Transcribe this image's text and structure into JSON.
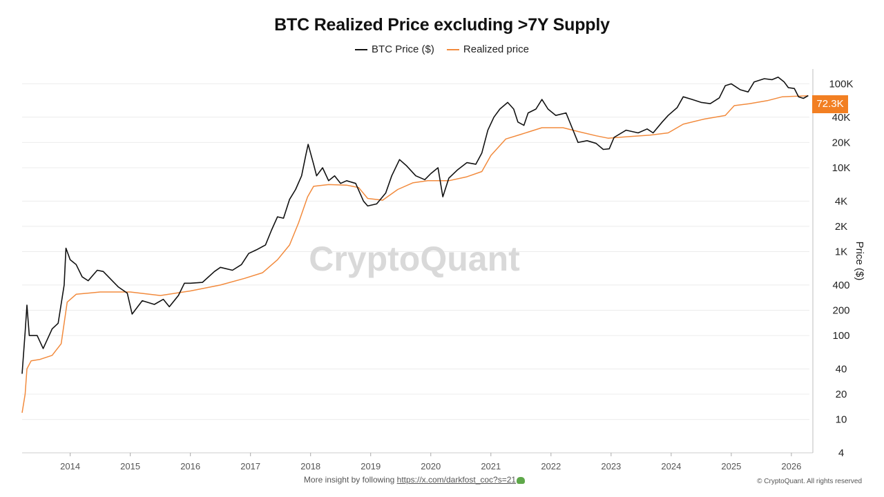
{
  "title": "BTC Realized Price excluding >7Y Supply",
  "legend": {
    "btc": "BTC Price ($)",
    "realized": "Realized price"
  },
  "footer": {
    "text": "More insight by following ",
    "link": "https://x.com/darkfost_coc?s=21",
    "icon": "frog-icon"
  },
  "copyright": "© CryptoQuant. All rights reserved",
  "watermark": "CryptoQuant",
  "current_label": "72.3K",
  "colors": {
    "btc": "#111111",
    "realized": "#f28a3c",
    "tag": "#f27f22",
    "grid": "#ececec"
  },
  "chart_data": {
    "type": "line",
    "title": "BTC Realized Price excluding >7Y Supply",
    "ylabel": "Price ($)",
    "yscale": "log",
    "ylim": [
      4,
      150000
    ],
    "xlim": [
      2013.2,
      2026.3
    ],
    "x_ticks": [
      "2014",
      "2015",
      "2016",
      "2017",
      "2018",
      "2019",
      "2020",
      "2021",
      "2022",
      "2023",
      "2024",
      "2025",
      "2026"
    ],
    "y_ticks": [
      {
        "v": 4,
        "label": "4"
      },
      {
        "v": 10,
        "label": "10"
      },
      {
        "v": 20,
        "label": "20"
      },
      {
        "v": 40,
        "label": "40"
      },
      {
        "v": 100,
        "label": "100"
      },
      {
        "v": 200,
        "label": "200"
      },
      {
        "v": 400,
        "label": "400"
      },
      {
        "v": 1000,
        "label": "1K"
      },
      {
        "v": 2000,
        "label": "2K"
      },
      {
        "v": 4000,
        "label": "4K"
      },
      {
        "v": 10000,
        "label": "10K"
      },
      {
        "v": 20000,
        "label": "20K"
      },
      {
        "v": 40000,
        "label": "40K"
      },
      {
        "v": 100000,
        "label": "100K"
      }
    ],
    "grid": true,
    "legend_position": "top-center",
    "series": [
      {
        "name": "BTC Price ($)",
        "points": [
          [
            2013.2,
            35
          ],
          [
            2013.25,
            110
          ],
          [
            2013.28,
            230
          ],
          [
            2013.32,
            100
          ],
          [
            2013.45,
            100
          ],
          [
            2013.55,
            70
          ],
          [
            2013.7,
            120
          ],
          [
            2013.8,
            140
          ],
          [
            2013.9,
            400
          ],
          [
            2013.93,
            1100
          ],
          [
            2014.0,
            800
          ],
          [
            2014.1,
            700
          ],
          [
            2014.2,
            500
          ],
          [
            2014.3,
            450
          ],
          [
            2014.45,
            600
          ],
          [
            2014.55,
            580
          ],
          [
            2014.7,
            450
          ],
          [
            2014.8,
            380
          ],
          [
            2014.95,
            320
          ],
          [
            2015.03,
            180
          ],
          [
            2015.2,
            260
          ],
          [
            2015.4,
            235
          ],
          [
            2015.55,
            270
          ],
          [
            2015.65,
            220
          ],
          [
            2015.8,
            300
          ],
          [
            2015.9,
            420
          ],
          [
            2016.0,
            420
          ],
          [
            2016.2,
            430
          ],
          [
            2016.4,
            580
          ],
          [
            2016.5,
            650
          ],
          [
            2016.7,
            600
          ],
          [
            2016.85,
            700
          ],
          [
            2016.97,
            950
          ],
          [
            2017.1,
            1050
          ],
          [
            2017.25,
            1200
          ],
          [
            2017.35,
            1800
          ],
          [
            2017.45,
            2600
          ],
          [
            2017.55,
            2500
          ],
          [
            2017.65,
            4200
          ],
          [
            2017.75,
            5500
          ],
          [
            2017.85,
            8000
          ],
          [
            2017.92,
            14000
          ],
          [
            2017.96,
            19000
          ],
          [
            2018.05,
            11000
          ],
          [
            2018.1,
            8000
          ],
          [
            2018.2,
            10000
          ],
          [
            2018.3,
            7000
          ],
          [
            2018.4,
            8000
          ],
          [
            2018.5,
            6500
          ],
          [
            2018.6,
            7000
          ],
          [
            2018.75,
            6500
          ],
          [
            2018.88,
            4000
          ],
          [
            2018.95,
            3500
          ],
          [
            2019.1,
            3700
          ],
          [
            2019.25,
            5000
          ],
          [
            2019.35,
            8000
          ],
          [
            2019.48,
            12500
          ],
          [
            2019.6,
            10500
          ],
          [
            2019.75,
            8000
          ],
          [
            2019.9,
            7200
          ],
          [
            2020.0,
            8500
          ],
          [
            2020.12,
            10000
          ],
          [
            2020.2,
            4500
          ],
          [
            2020.3,
            7500
          ],
          [
            2020.45,
            9500
          ],
          [
            2020.6,
            11500
          ],
          [
            2020.75,
            11000
          ],
          [
            2020.85,
            15000
          ],
          [
            2020.95,
            28000
          ],
          [
            2021.05,
            40000
          ],
          [
            2021.15,
            50000
          ],
          [
            2021.28,
            60000
          ],
          [
            2021.38,
            50000
          ],
          [
            2021.45,
            35000
          ],
          [
            2021.55,
            32000
          ],
          [
            2021.62,
            45000
          ],
          [
            2021.75,
            50000
          ],
          [
            2021.85,
            65000
          ],
          [
            2021.95,
            50000
          ],
          [
            2022.08,
            42000
          ],
          [
            2022.25,
            45000
          ],
          [
            2022.35,
            30000
          ],
          [
            2022.45,
            20000
          ],
          [
            2022.6,
            21000
          ],
          [
            2022.75,
            19500
          ],
          [
            2022.87,
            16500
          ],
          [
            2022.97,
            16800
          ],
          [
            2023.05,
            23000
          ],
          [
            2023.25,
            28000
          ],
          [
            2023.45,
            26000
          ],
          [
            2023.6,
            29000
          ],
          [
            2023.7,
            26000
          ],
          [
            2023.85,
            35000
          ],
          [
            2023.95,
            42000
          ],
          [
            2024.1,
            52000
          ],
          [
            2024.2,
            70000
          ],
          [
            2024.35,
            65000
          ],
          [
            2024.5,
            60000
          ],
          [
            2024.65,
            58000
          ],
          [
            2024.8,
            68000
          ],
          [
            2024.9,
            95000
          ],
          [
            2025.0,
            100000
          ],
          [
            2025.15,
            85000
          ],
          [
            2025.28,
            80000
          ],
          [
            2025.38,
            105000
          ],
          [
            2025.55,
            115000
          ],
          [
            2025.68,
            112000
          ],
          [
            2025.78,
            120000
          ],
          [
            2025.88,
            105000
          ],
          [
            2025.95,
            90000
          ],
          [
            2026.05,
            88000
          ],
          [
            2026.12,
            70000
          ],
          [
            2026.2,
            67000
          ],
          [
            2026.28,
            72300
          ]
        ]
      },
      {
        "name": "Realized price",
        "points": [
          [
            2013.2,
            12
          ],
          [
            2013.25,
            20
          ],
          [
            2013.28,
            40
          ],
          [
            2013.35,
            50
          ],
          [
            2013.5,
            52
          ],
          [
            2013.7,
            58
          ],
          [
            2013.85,
            80
          ],
          [
            2013.95,
            250
          ],
          [
            2014.1,
            310
          ],
          [
            2014.5,
            330
          ],
          [
            2015.0,
            330
          ],
          [
            2015.5,
            300
          ],
          [
            2016.0,
            340
          ],
          [
            2016.5,
            400
          ],
          [
            2016.9,
            480
          ],
          [
            2017.2,
            560
          ],
          [
            2017.45,
            800
          ],
          [
            2017.65,
            1200
          ],
          [
            2017.8,
            2200
          ],
          [
            2017.95,
            4500
          ],
          [
            2018.05,
            6000
          ],
          [
            2018.3,
            6300
          ],
          [
            2018.6,
            6200
          ],
          [
            2018.8,
            5800
          ],
          [
            2018.95,
            4300
          ],
          [
            2019.2,
            4100
          ],
          [
            2019.45,
            5500
          ],
          [
            2019.7,
            6600
          ],
          [
            2019.95,
            7000
          ],
          [
            2020.3,
            7000
          ],
          [
            2020.6,
            7800
          ],
          [
            2020.85,
            9000
          ],
          [
            2021.0,
            14000
          ],
          [
            2021.25,
            22000
          ],
          [
            2021.5,
            25000
          ],
          [
            2021.85,
            30000
          ],
          [
            2022.2,
            30000
          ],
          [
            2022.45,
            27000
          ],
          [
            2022.75,
            24000
          ],
          [
            2022.95,
            22500
          ],
          [
            2023.3,
            23500
          ],
          [
            2023.65,
            24500
          ],
          [
            2023.95,
            26000
          ],
          [
            2024.2,
            33000
          ],
          [
            2024.55,
            38000
          ],
          [
            2024.9,
            42000
          ],
          [
            2025.05,
            55000
          ],
          [
            2025.3,
            58000
          ],
          [
            2025.6,
            63000
          ],
          [
            2025.85,
            70000
          ],
          [
            2026.05,
            71000
          ],
          [
            2026.28,
            72000
          ]
        ]
      }
    ],
    "current_value": 72300
  }
}
